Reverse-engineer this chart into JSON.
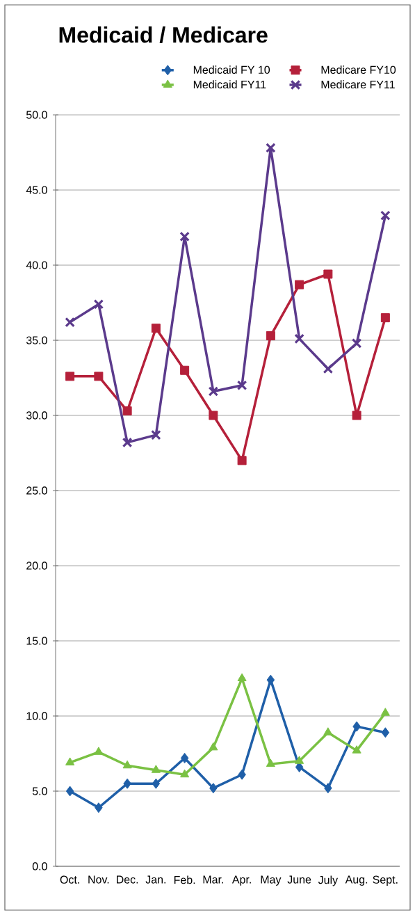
{
  "chart_data": {
    "type": "line",
    "title": "Medicaid / Medicare",
    "categories": [
      "Oct.",
      "Nov.",
      "Dec.",
      "Jan.",
      "Feb.",
      "Mar.",
      "Apr.",
      "May",
      "June",
      "July",
      "Aug.",
      "Sept."
    ],
    "series": [
      {
        "name": "Medicaid FY 10",
        "color": "#1f5fa8",
        "marker": "diamond",
        "values": [
          5.0,
          3.9,
          5.5,
          5.5,
          7.2,
          5.2,
          6.1,
          12.4,
          6.6,
          5.2,
          9.3,
          8.9
        ]
      },
      {
        "name": "Medicare FY10",
        "color": "#b5203a",
        "marker": "square",
        "values": [
          32.6,
          32.6,
          30.3,
          35.8,
          33.0,
          30.0,
          27.0,
          35.3,
          38.7,
          39.4,
          30.0,
          36.5
        ]
      },
      {
        "name": "Medicaid FY11",
        "color": "#7ac143",
        "marker": "triangle",
        "values": [
          6.9,
          7.6,
          6.7,
          6.4,
          6.1,
          7.9,
          12.5,
          6.8,
          7.0,
          8.9,
          7.7,
          10.2
        ]
      },
      {
        "name": "Medicare FY11",
        "color": "#5b3a8c",
        "marker": "cross",
        "values": [
          36.2,
          37.4,
          28.2,
          28.7,
          41.9,
          31.6,
          32.0,
          47.8,
          35.1,
          33.1,
          34.8,
          43.3
        ]
      }
    ],
    "ylim": [
      0,
      50
    ],
    "yticks": [
      {
        "value": 0,
        "label": "0.0"
      },
      {
        "value": 5,
        "label": "5.0"
      },
      {
        "value": 10,
        "label": "10.0"
      },
      {
        "value": 15,
        "label": "15.0"
      },
      {
        "value": 20,
        "label": "20.0"
      },
      {
        "value": 25,
        "label": "25.0"
      },
      {
        "value": 30,
        "label": "30.0"
      },
      {
        "value": 35,
        "label": "35.0"
      },
      {
        "value": 40,
        "label": "40.0"
      },
      {
        "value": 45,
        "label": "45.0"
      },
      {
        "value": 50,
        "label": "50.0"
      }
    ],
    "grid": "y",
    "legend": "top right",
    "line_style": "solid"
  }
}
